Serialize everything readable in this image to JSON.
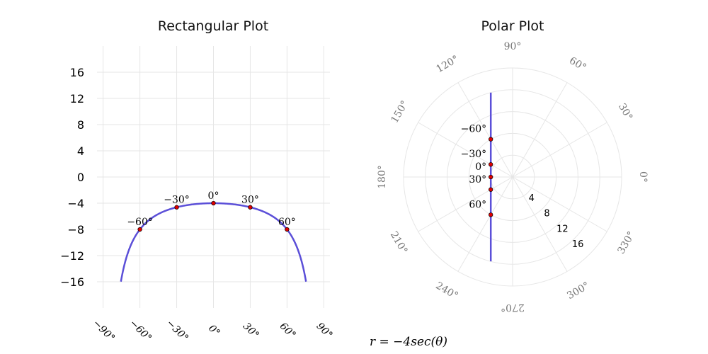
{
  "chart_data": [
    {
      "type": "line",
      "title": "Rectangular Plot",
      "xlabel": "",
      "ylabel": "",
      "xlim": [
        -95,
        95
      ],
      "ylim": [
        -20,
        20
      ],
      "x_ticks": [
        -90,
        -60,
        -30,
        0,
        30,
        60,
        90
      ],
      "x_tick_labels": [
        "−90°",
        "−60°",
        "−30°",
        "0°",
        "30°",
        "60°",
        "90°"
      ],
      "y_ticks": [
        16,
        12,
        8,
        4,
        0,
        -4,
        -8,
        -12,
        -16
      ],
      "y_tick_labels": [
        "16",
        "12",
        "8",
        "4",
        "0",
        "−4",
        "−8",
        "−12",
        "−16"
      ],
      "grid": true,
      "curve_domain": [
        -75.5,
        75.5
      ],
      "points": [
        {
          "theta": -60,
          "r": -8,
          "label": "−60°"
        },
        {
          "theta": -30,
          "r": -4.62,
          "label": "−30°"
        },
        {
          "theta": 0,
          "r": -4,
          "label": "0°"
        },
        {
          "theta": 30,
          "r": -4.62,
          "label": "30°"
        },
        {
          "theta": 60,
          "r": -8,
          "label": "60°"
        }
      ],
      "line_color": "#5b4fd8",
      "point_color": "#e00000"
    },
    {
      "type": "line",
      "title": "Polar Plot",
      "theta_ticks": [
        0,
        30,
        60,
        90,
        120,
        150,
        180,
        210,
        240,
        270,
        300,
        330
      ],
      "theta_tick_labels": [
        "0°",
        "30°",
        "60°",
        "90°",
        "120°",
        "150°",
        "180°",
        "210°",
        "240°",
        "270°",
        "300°",
        "330°"
      ],
      "r_ticks": [
        4,
        8,
        12,
        16
      ],
      "r_tick_labels": [
        "4",
        "8",
        "12",
        "16"
      ],
      "rmax": 20,
      "grid": true,
      "curve_domain": [
        -75.5,
        75.5
      ],
      "points": [
        {
          "theta": -60,
          "r": -8,
          "label": "−60°"
        },
        {
          "theta": -30,
          "r": -4.62,
          "label": "−30°"
        },
        {
          "theta": 0,
          "r": -4,
          "label": "0°"
        },
        {
          "theta": 30,
          "r": -4.62,
          "label": "30°"
        },
        {
          "theta": 60,
          "r": -8,
          "label": "60°"
        }
      ],
      "line_color": "#5b4fd8",
      "point_color": "#e00000"
    }
  ],
  "formula": "r = −4sec(θ)"
}
